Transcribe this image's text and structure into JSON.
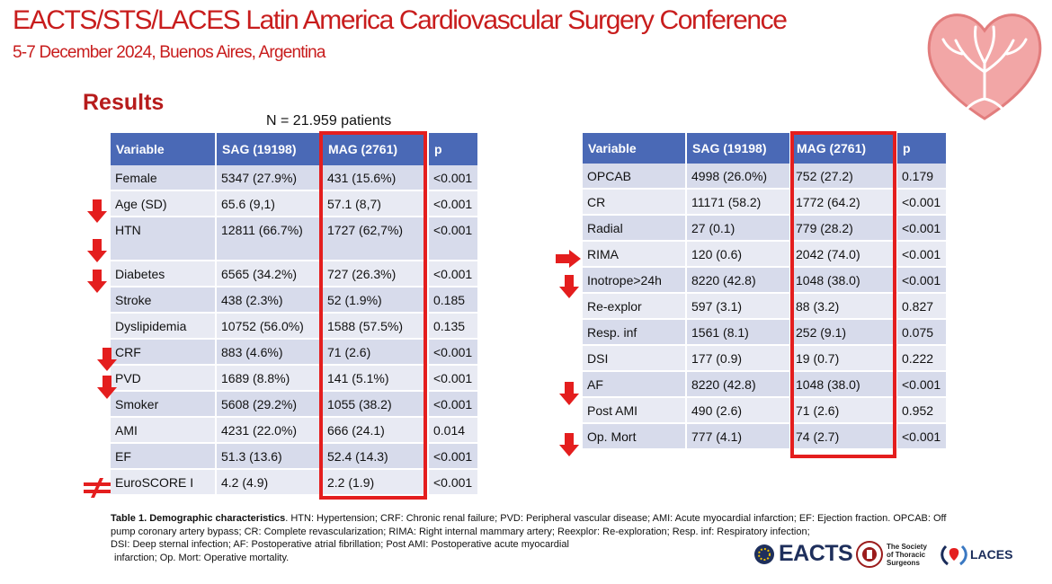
{
  "header": {
    "conference_title": "EACTS/STS/LACES Latin America Cardiovascular Surgery Conference",
    "conference_date": "5-7 December 2024, Buenos Aires, Argentina"
  },
  "section_title": "Results",
  "n_label": "N = 21.959 patients",
  "table_left": {
    "headers": [
      "Variable",
      "SAG (19198)",
      "MAG (2761)",
      "p"
    ],
    "rows": [
      [
        "Female",
        "5347 (27.9%)",
        "431 (15.6%)",
        "<0.001"
      ],
      [
        "Age (SD)",
        "65.6 (9,1)",
        "57.1 (8,7)",
        "<0.001"
      ],
      [
        "HTN",
        "12811 (66.7%)",
        "1727 (62,7%)",
        "<0.001"
      ],
      [
        "Diabetes",
        "6565 (34.2%)",
        "727 (26.3%)",
        "<0.001"
      ],
      [
        "Stroke",
        "438 (2.3%)",
        "52 (1.9%)",
        "0.185"
      ],
      [
        "Dyslipidemia",
        "10752 (56.0%)",
        "1588 (57.5%)",
        "0.135"
      ],
      [
        "CRF",
        "883 (4.6%)",
        "71 (2.6)",
        "<0.001"
      ],
      [
        "PVD",
        "1689 (8.8%)",
        "141 (5.1%)",
        "<0.001"
      ],
      [
        "Smoker",
        "5608 (29.2%)",
        "1055 (38.2)",
        "<0.001"
      ],
      [
        "AMI",
        "4231 (22.0%)",
        "666 (24.1)",
        "0.014"
      ],
      [
        "EF",
        "51.3 (13.6)",
        "52.4 (14.3)",
        "<0.001"
      ],
      [
        "EuroSCORE I",
        "4.2 (4.9)",
        "2.2 (1.9)",
        "<0.001"
      ]
    ]
  },
  "table_right": {
    "headers": [
      "Variable",
      "SAG (19198)",
      "MAG (2761)",
      "p"
    ],
    "rows": [
      [
        "OPCAB",
        "4998 (26.0%)",
        "752 (27.2)",
        "0.179"
      ],
      [
        "CR",
        "11171 (58.2)",
        "1772 (64.2)",
        "<0.001"
      ],
      [
        "Radial",
        "27 (0.1)",
        "779 (28.2)",
        "<0.001"
      ],
      [
        "RIMA",
        "120 (0.6)",
        "2042 (74.0)",
        "<0.001"
      ],
      [
        "Inotrope>24h",
        "8220 (42.8)",
        "1048 (38.0)",
        "<0.001"
      ],
      [
        "Re-explor",
        "597 (3.1)",
        "88 (3.2)",
        "0.827"
      ],
      [
        "Resp. inf",
        "1561 (8.1)",
        "252 (9.1)",
        "0.075"
      ],
      [
        "DSI",
        "177 (0.9)",
        "19 (0.7)",
        "0.222"
      ],
      [
        "AF",
        "8220 (42.8)",
        "1048 (38.0)",
        "<0.001"
      ],
      [
        "Post AMI",
        "490 (2.6)",
        "71 (2.6)",
        "0.952"
      ],
      [
        "Op. Mort",
        "777 (4.1)",
        "74 (2.7)",
        "<0.001"
      ]
    ]
  },
  "caption": {
    "label": "Table 1. Demographic characteristics",
    "line1": ". HTN: Hypertension; CRF: Chronic renal failure; PVD: Peripheral vascular disease; AMI: Acute myocardial infarction; EF: Ejection fraction. OPCAB: Off pump coronary artery bypass; CR: Complete revascularization; RIMA: Right internal mammary artery; Reexplor: Re-exploration; Resp. inf: Respiratory infection;",
    "line2": "DSI: Deep sternal infection; AF: Postoperative atrial fibrillation; Post AMI: Postoperative acute myocardial",
    "line3": "infarction; Op. Mort: Operative mortality."
  },
  "logos": {
    "eacts": "EACTS",
    "sts": "The Society of Thoracic Surgeons",
    "laces": "LACES"
  },
  "colors": {
    "title_red": "#c81d1d",
    "header_blue": "#4a69b6",
    "row_shade": "#d7dbeb",
    "highlight_box": "#e41e1e"
  }
}
